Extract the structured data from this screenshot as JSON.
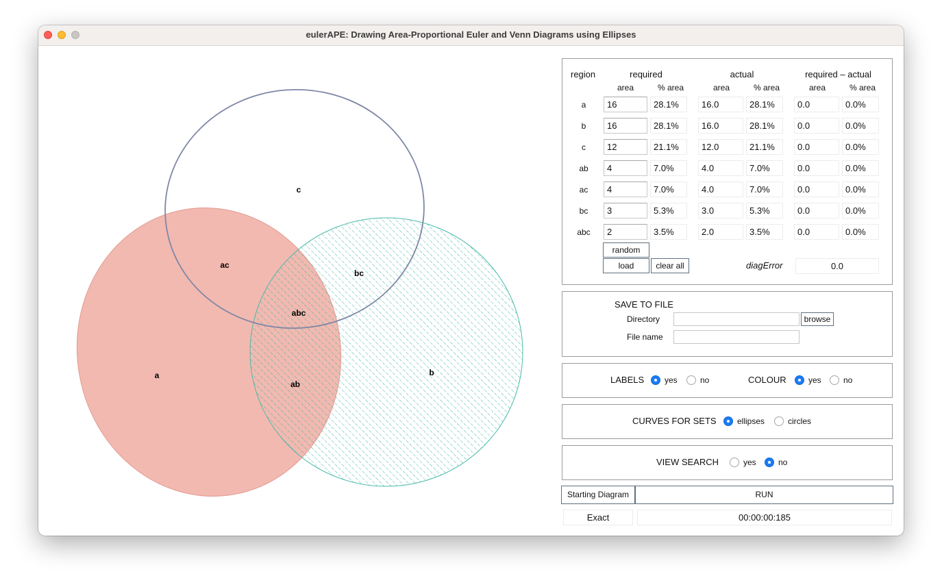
{
  "window": {
    "title": "eulerAPE: Drawing Area-Proportional Euler and Venn Diagrams using Ellipses"
  },
  "diagram": {
    "labels": {
      "a": "a",
      "b": "b",
      "c": "c",
      "ab": "ab",
      "ac": "ac",
      "bc": "bc",
      "abc": "abc"
    },
    "colors": {
      "a_fill": "#f2b9b0",
      "a_stroke": "#e6978b",
      "b_hatch": "#3fb3a4",
      "c_stroke": "#7e86a6"
    }
  },
  "table": {
    "headers": {
      "region": "region",
      "required": "required",
      "actual": "actual",
      "difference": "required – actual",
      "area": "area",
      "pct_area": "% area"
    },
    "rows": [
      {
        "region": "a",
        "req_area": "16",
        "req_pct": "28.1%",
        "act_area": "16.0",
        "act_pct": "28.1%",
        "diff_area": "0.0",
        "diff_pct": "0.0%"
      },
      {
        "region": "b",
        "req_area": "16",
        "req_pct": "28.1%",
        "act_area": "16.0",
        "act_pct": "28.1%",
        "diff_area": "0.0",
        "diff_pct": "0.0%"
      },
      {
        "region": "c",
        "req_area": "12",
        "req_pct": "21.1%",
        "act_area": "12.0",
        "act_pct": "21.1%",
        "diff_area": "0.0",
        "diff_pct": "0.0%"
      },
      {
        "region": "ab",
        "req_area": "4",
        "req_pct": "7.0%",
        "act_area": "4.0",
        "act_pct": "7.0%",
        "diff_area": "0.0",
        "diff_pct": "0.0%"
      },
      {
        "region": "ac",
        "req_area": "4",
        "req_pct": "7.0%",
        "act_area": "4.0",
        "act_pct": "7.0%",
        "diff_area": "0.0",
        "diff_pct": "0.0%"
      },
      {
        "region": "bc",
        "req_area": "3",
        "req_pct": "5.3%",
        "act_area": "3.0",
        "act_pct": "5.3%",
        "diff_area": "0.0",
        "diff_pct": "0.0%"
      },
      {
        "region": "abc",
        "req_area": "2",
        "req_pct": "3.5%",
        "act_area": "2.0",
        "act_pct": "3.5%",
        "diff_area": "0.0",
        "diff_pct": "0.0%"
      }
    ],
    "random_label": "random",
    "load_label": "load",
    "clear_all_label": "clear all",
    "diag_error_label": "diagError",
    "diag_error_value": "0.0"
  },
  "save": {
    "heading": "SAVE TO FILE",
    "directory_label": "Directory",
    "directory_value": "",
    "browse_label": "browse",
    "filename_label": "File name",
    "filename_value": ""
  },
  "options": {
    "labels_heading": "LABELS",
    "labels_yes": "yes",
    "labels_no": "no",
    "labels_selected": "yes",
    "colour_heading": "COLOUR",
    "colour_yes": "yes",
    "colour_no": "no",
    "colour_selected": "yes",
    "curves_heading": "CURVES FOR SETS",
    "curves_ellipses": "ellipses",
    "curves_circles": "circles",
    "curves_selected": "ellipses",
    "view_heading": "VIEW SEARCH",
    "view_yes": "yes",
    "view_no": "no",
    "view_selected": "no"
  },
  "controls": {
    "starting_diagram_label": "Starting Diagram",
    "run_label": "RUN",
    "status_label": "Exact",
    "timer": "00:00:00:185"
  }
}
